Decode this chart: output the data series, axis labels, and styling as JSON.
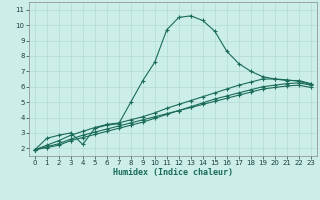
{
  "xlabel": "Humidex (Indice chaleur)",
  "bg_color": "#cceee8",
  "grid_color": "#b8ddd8",
  "line_color": "#1a6b5a",
  "xlim": [
    -0.5,
    23.5
  ],
  "ylim": [
    1.5,
    11.5
  ],
  "xticks": [
    0,
    1,
    2,
    3,
    4,
    5,
    6,
    7,
    8,
    9,
    10,
    11,
    12,
    13,
    14,
    15,
    16,
    17,
    18,
    19,
    20,
    21,
    22,
    23
  ],
  "yticks": [
    2,
    3,
    4,
    5,
    6,
    7,
    8,
    9,
    10,
    11
  ],
  "curve1_x": [
    0,
    1,
    2,
    3,
    4,
    5,
    6,
    7,
    8,
    9,
    10,
    11,
    12,
    13,
    14,
    15,
    16,
    17,
    18,
    19,
    20,
    21,
    22,
    23
  ],
  "curve1_y": [
    1.9,
    2.65,
    2.85,
    3.0,
    2.25,
    3.3,
    3.5,
    3.6,
    5.0,
    6.4,
    7.6,
    9.7,
    10.5,
    10.6,
    10.3,
    9.6,
    8.3,
    7.5,
    7.0,
    6.65,
    6.5,
    6.4,
    6.4,
    6.2
  ],
  "curve2_x": [
    0,
    1,
    2,
    3,
    4,
    5,
    6,
    7,
    8,
    9,
    10,
    11,
    12,
    13,
    14,
    15,
    16,
    17,
    18,
    19,
    20,
    21,
    22,
    23
  ],
  "curve2_y": [
    1.9,
    2.2,
    2.5,
    2.85,
    3.1,
    3.35,
    3.55,
    3.65,
    3.85,
    4.05,
    4.3,
    4.6,
    4.85,
    5.1,
    5.35,
    5.6,
    5.85,
    6.1,
    6.3,
    6.5,
    6.5,
    6.45,
    6.35,
    6.15
  ],
  "curve3_x": [
    0,
    1,
    2,
    3,
    4,
    5,
    6,
    7,
    8,
    9,
    10,
    11,
    12,
    13,
    14,
    15,
    16,
    17,
    18,
    19,
    20,
    21,
    22,
    23
  ],
  "curve3_y": [
    1.9,
    2.1,
    2.3,
    2.6,
    2.85,
    3.05,
    3.25,
    3.45,
    3.65,
    3.85,
    4.05,
    4.25,
    4.45,
    4.65,
    4.85,
    5.05,
    5.25,
    5.45,
    5.65,
    5.85,
    5.95,
    6.05,
    6.1,
    5.95
  ],
  "curve4_x": [
    0,
    1,
    2,
    3,
    4,
    5,
    6,
    7,
    8,
    9,
    10,
    11,
    12,
    13,
    14,
    15,
    16,
    17,
    18,
    19,
    20,
    21,
    22,
    23
  ],
  "curve4_y": [
    1.9,
    2.05,
    2.2,
    2.5,
    2.7,
    2.9,
    3.1,
    3.3,
    3.5,
    3.7,
    3.95,
    4.2,
    4.45,
    4.7,
    4.95,
    5.2,
    5.4,
    5.6,
    5.8,
    6.0,
    6.1,
    6.2,
    6.25,
    6.1
  ]
}
